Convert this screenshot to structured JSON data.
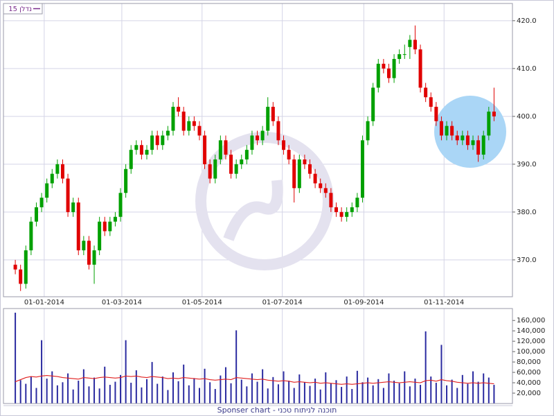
{
  "chart_data": {
    "type": "candlestick",
    "legend": "נדלן 15",
    "legend_color": "#7a2c8c",
    "footer": "Sponser chart - תוכנה לניתוח טכני",
    "up_color": "#00a000",
    "down_color": "#e00000",
    "grid": true,
    "x": [
      "10-12-2013",
      "14-12-2013",
      "18-12-2013",
      "22-12-2013",
      "26-12-2013",
      "30-12-2013",
      "03-01-2014",
      "07-01-2014",
      "11-01-2014",
      "15-01-2014",
      "19-01-2014",
      "23-01-2014",
      "27-01-2014",
      "31-01-2014",
      "04-02-2014",
      "08-02-2014",
      "12-02-2014",
      "16-02-2014",
      "20-02-2014",
      "24-02-2014",
      "28-02-2014",
      "04-03-2014",
      "08-03-2014",
      "12-03-2014",
      "16-03-2014",
      "20-03-2014",
      "24-03-2014",
      "28-03-2014",
      "01-04-2014",
      "05-04-2014",
      "09-04-2014",
      "13-04-2014",
      "17-04-2014",
      "21-04-2014",
      "25-04-2014",
      "29-04-2014",
      "03-05-2014",
      "07-05-2014",
      "11-05-2014",
      "15-05-2014",
      "19-05-2014",
      "23-05-2014",
      "27-05-2014",
      "31-05-2014",
      "04-06-2014",
      "08-06-2014",
      "12-06-2014",
      "16-06-2014",
      "20-06-2014",
      "24-06-2014",
      "28-06-2014",
      "02-07-2014",
      "06-07-2014",
      "10-07-2014",
      "14-07-2014",
      "18-07-2014",
      "22-07-2014",
      "26-07-2014",
      "30-07-2014",
      "03-08-2014",
      "07-08-2014",
      "11-08-2014",
      "15-08-2014",
      "19-08-2014",
      "23-08-2014",
      "27-08-2014",
      "31-08-2014",
      "04-09-2014",
      "08-09-2014",
      "12-09-2014",
      "16-09-2014",
      "20-09-2014",
      "24-09-2014",
      "28-09-2014",
      "02-10-2014",
      "06-10-2014",
      "10-10-2014",
      "14-10-2014",
      "18-10-2014",
      "22-10-2014",
      "26-10-2014",
      "30-10-2014",
      "03-11-2014",
      "07-11-2014",
      "11-11-2014",
      "15-11-2014",
      "19-11-2014",
      "23-11-2014",
      "27-11-2014",
      "01-12-2014",
      "05-12-2014",
      "09-12-2014"
    ],
    "open": [
      369,
      368,
      365,
      372,
      378,
      381,
      383,
      386,
      388,
      390,
      387,
      380,
      382,
      372,
      374,
      369,
      372,
      378,
      376,
      378,
      379,
      384,
      389,
      393,
      394,
      392,
      393,
      396,
      394,
      396,
      397,
      402,
      401,
      397,
      399,
      398,
      396,
      390,
      387,
      391,
      395,
      392,
      388,
      390,
      391,
      393,
      396,
      395,
      397,
      402,
      399,
      395,
      393,
      391,
      385,
      391,
      390,
      388,
      386,
      385,
      384,
      381,
      380,
      379,
      380,
      381,
      383,
      395,
      399,
      406,
      411,
      410,
      408,
      412,
      413,
      414.5,
      416,
      414,
      406,
      404,
      402,
      399,
      396,
      398,
      396,
      395,
      396,
      394,
      395,
      392,
      396,
      401
    ],
    "high": [
      370,
      369,
      373,
      379,
      382,
      384,
      387,
      389,
      391,
      391,
      388,
      383,
      383,
      375,
      375,
      373,
      379,
      379,
      379,
      380,
      385,
      390,
      394,
      395,
      395,
      394,
      397,
      397,
      397,
      398,
      403,
      404,
      402,
      400,
      400,
      399,
      397,
      391,
      392,
      396,
      396,
      393,
      391,
      392,
      394,
      397,
      397,
      398,
      404,
      403,
      400,
      396,
      394,
      392,
      392,
      392,
      391,
      389,
      387,
      386,
      385,
      382,
      381,
      381,
      382,
      384,
      396,
      400,
      407,
      412,
      412,
      411,
      413,
      414,
      415,
      417,
      419,
      415,
      407,
      405,
      403,
      400,
      399,
      399,
      397,
      397,
      397,
      396,
      396,
      397,
      402,
      406
    ],
    "low": [
      367,
      363.5,
      364,
      371,
      377,
      380,
      382,
      385,
      387,
      386,
      379,
      379,
      371,
      371,
      368,
      365,
      371,
      375,
      375,
      377,
      378,
      383,
      388,
      392,
      391,
      391,
      392,
      393,
      393,
      395,
      396,
      400,
      396,
      396,
      397,
      395,
      389,
      386,
      386,
      390,
      391,
      387,
      387,
      389,
      390,
      392,
      394,
      394,
      396,
      398,
      394,
      392,
      390,
      382,
      384,
      389,
      387,
      385,
      384,
      383,
      380,
      379,
      378,
      378,
      379,
      380,
      382,
      394,
      398,
      405,
      409,
      407,
      407,
      411,
      412,
      412,
      413,
      405,
      403,
      401,
      398,
      395,
      395,
      395,
      394,
      394,
      393,
      393,
      390.5,
      391,
      395,
      399
    ],
    "close": [
      368,
      365,
      372,
      378,
      381,
      383,
      386,
      388,
      390,
      387,
      380,
      382,
      372,
      374,
      369,
      372,
      378,
      376,
      378,
      379,
      384,
      389,
      393,
      394,
      392,
      393,
      396,
      394,
      396,
      397,
      402,
      401,
      397,
      399,
      398,
      396,
      390,
      387,
      391,
      395,
      392,
      388,
      390,
      391,
      393,
      396,
      395,
      397,
      402,
      399,
      395,
      393,
      391,
      385,
      391,
      390,
      388,
      386,
      385,
      384,
      381,
      380,
      379,
      380,
      381,
      383,
      395,
      399,
      406,
      411,
      410,
      408,
      412,
      413,
      413,
      416,
      414,
      406,
      404,
      402,
      399,
      396,
      398,
      396,
      395,
      396,
      394,
      395,
      392,
      396,
      401,
      400
    ],
    "xlim": [
      "01-12-2013",
      "23-12-2014"
    ],
    "xticks": [
      "01-01-2014",
      "01-03-2014",
      "01-05-2014",
      "01-07-2014",
      "01-09-2014",
      "01-11-2014"
    ],
    "ylim": [
      362.3,
      423.6
    ],
    "yticks": [
      {
        "value": 370,
        "label": "370.0"
      },
      {
        "value": 380,
        "label": "380.0"
      },
      {
        "value": 390,
        "label": "390.0"
      },
      {
        "value": 400,
        "label": "400.0"
      },
      {
        "value": 410,
        "label": "410.0"
      },
      {
        "value": 420,
        "label": "420.0"
      }
    ],
    "volume": {
      "color": "#2a2aa0",
      "values": [
        175000,
        45000,
        38000,
        52000,
        30000,
        122000,
        48000,
        62000,
        35000,
        41000,
        58000,
        27000,
        44000,
        66000,
        33000,
        50000,
        29000,
        71000,
        36000,
        42000,
        55000,
        122000,
        40000,
        64000,
        31000,
        47000,
        80000,
        38000,
        52000,
        26000,
        60000,
        43000,
        75000,
        35000,
        49000,
        30000,
        67000,
        41000,
        28000,
        54000,
        70000,
        39000,
        141000,
        46000,
        33000,
        58000,
        42000,
        66000,
        29000,
        51000,
        37000,
        62000,
        44000,
        30000,
        56000,
        41000,
        34000,
        48000,
        27000,
        60000,
        39000,
        45000,
        32000,
        52000,
        28000,
        63000,
        41000,
        50000,
        35000,
        47000,
        30000,
        58000,
        44000,
        39000,
        62000,
        33000,
        48000,
        36000,
        139000,
        52000,
        40000,
        113000,
        35000,
        46000,
        30000,
        55000,
        38000,
        62000,
        42000,
        58000,
        50000,
        36000
      ],
      "ma_color": "#e02020",
      "ma": [
        42000,
        46000,
        50000,
        52000,
        51000,
        53000,
        54000,
        53000,
        52000,
        50000,
        49000,
        48000,
        47000,
        50000,
        49000,
        48000,
        50000,
        51000,
        50000,
        49000,
        50000,
        53000,
        52000,
        53000,
        51000,
        50000,
        52000,
        51000,
        50000,
        48000,
        49000,
        48000,
        50000,
        49000,
        48000,
        47000,
        48000,
        46000,
        45000,
        46000,
        47000,
        46000,
        50000,
        49000,
        48000,
        47000,
        46000,
        47000,
        45000,
        44000,
        43000,
        44000,
        43000,
        41000,
        42000,
        41000,
        40000,
        41000,
        39000,
        40000,
        39000,
        38000,
        37000,
        38000,
        37000,
        38000,
        39000,
        40000,
        39000,
        40000,
        41000,
        42000,
        41000,
        40000,
        41000,
        42000,
        41000,
        40000,
        44000,
        45000,
        43000,
        46000,
        44000,
        43000,
        41000,
        40000,
        39000,
        40000,
        39000,
        40000,
        39000,
        38000
      ],
      "ylim": [
        0,
        183000
      ],
      "yticks": [
        {
          "value": 20000,
          "label": "20,000"
        },
        {
          "value": 40000,
          "label": "40,000"
        },
        {
          "value": 60000,
          "label": "60,000"
        },
        {
          "value": 80000,
          "label": "80,000"
        },
        {
          "value": 100000,
          "label": "100,000"
        },
        {
          "value": 120000,
          "label": "120,000"
        },
        {
          "value": 140000,
          "label": "140,000"
        },
        {
          "value": 160000,
          "label": "160,000"
        }
      ]
    }
  }
}
